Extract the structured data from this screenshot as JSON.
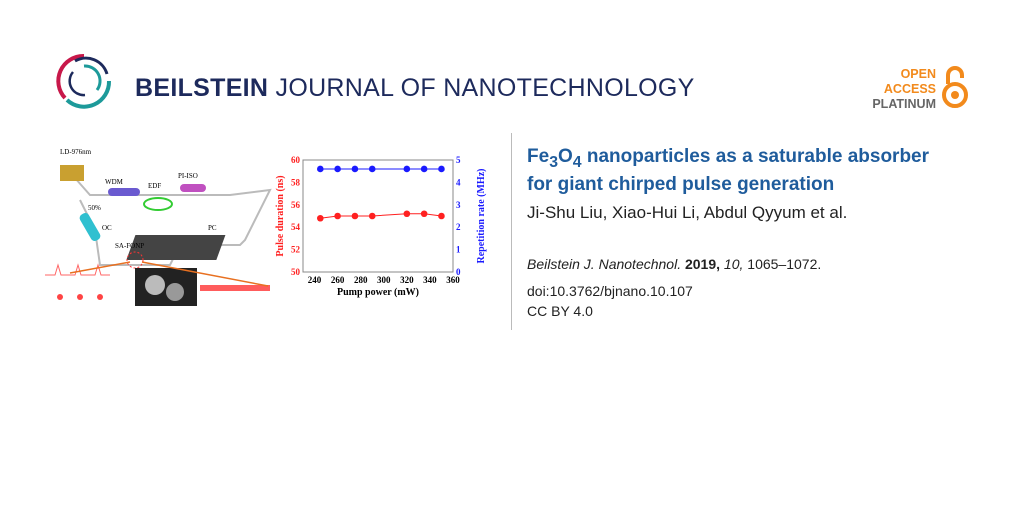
{
  "header": {
    "journal_bold": "BEILSTEIN",
    "journal_rest": " JOURNAL OF NANOTECHNOLOGY",
    "open_access": [
      "OPEN",
      "ACCESS",
      "PLATINUM"
    ],
    "colors": {
      "brand": "#1d2a5c",
      "oa": "#f28a1c",
      "oa_gray": "#666666"
    }
  },
  "article": {
    "title_pre": "Fe",
    "sub1": "3",
    "mid": "O",
    "sub2": "4",
    "title_post": " nanoparticles as a saturable absorber for giant chirped pulse generation",
    "authors": "Ji-Shu Liu, Xiao-Hui Li, Abdul Qyyum et al.",
    "journal_abbr": "Beilstein J. Nanotechnol.",
    "year": "2019,",
    "volume": "10,",
    "pages": " 1065–1072.",
    "doi": "doi:10.3762/bjnano.10.107",
    "license": "CC BY 4.0"
  },
  "schematic": {
    "labels": [
      "LD-976nm",
      "WDM",
      "EDF",
      "PI-ISO",
      "50%",
      "OC",
      "SA-FONP",
      "PC"
    ]
  },
  "chart_data": {
    "type": "line",
    "xlabel": "Pump power (mW)",
    "xlim": [
      230,
      360
    ],
    "xticks": [
      240,
      260,
      280,
      300,
      320,
      340,
      360
    ],
    "ylabel": "Pulse duration (ns)",
    "ylim": [
      50,
      60
    ],
    "yticks": [
      50,
      52,
      54,
      56,
      58,
      60
    ],
    "y2label": "Repetition rate (MHz)",
    "y2lim": [
      0,
      5
    ],
    "y2ticks": [
      0,
      1,
      2,
      3,
      4,
      5
    ],
    "x": [
      245,
      260,
      275,
      290,
      320,
      335,
      350
    ],
    "series": [
      {
        "axis": "left",
        "color": "#ff2020",
        "values": [
          54.8,
          55.0,
          55.0,
          55.0,
          55.2,
          55.2,
          55.0
        ]
      },
      {
        "axis": "right",
        "color": "#1a1aff",
        "values": [
          4.6,
          4.6,
          4.6,
          4.6,
          4.6,
          4.6,
          4.6
        ]
      }
    ]
  }
}
